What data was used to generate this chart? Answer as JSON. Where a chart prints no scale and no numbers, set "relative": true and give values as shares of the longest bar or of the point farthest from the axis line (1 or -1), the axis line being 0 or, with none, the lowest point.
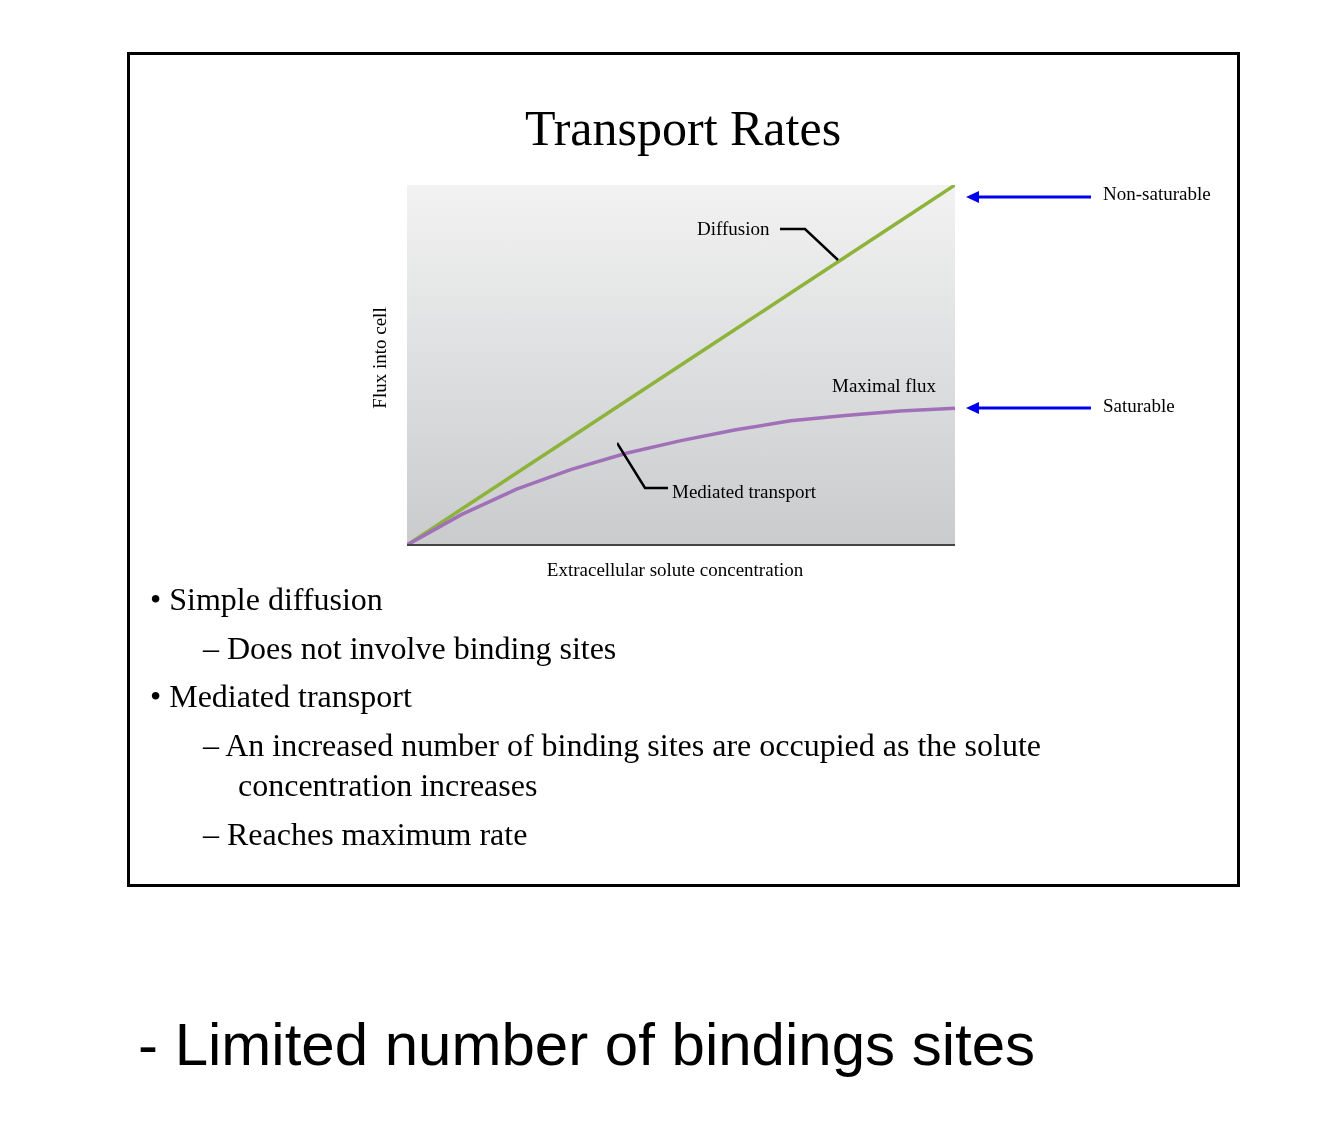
{
  "chart_data": {
    "type": "line",
    "title": "Transport Rates",
    "xlabel": "Extracellular solute concentration",
    "ylabel": "Flux into cell",
    "relative": true,
    "categories": [
      null,
      null,
      null,
      null,
      null,
      null,
      null,
      null,
      null,
      null,
      null
    ],
    "series": [
      {
        "name": "Diffusion",
        "color": "#8db33a",
        "values": [
          0,
          0.1,
          0.2,
          0.3,
          0.4,
          0.5,
          0.6,
          0.7,
          0.8,
          0.9,
          1
        ]
      },
      {
        "name": "Mediated transport",
        "color": "#a070b8",
        "values": [
          0,
          0.085,
          0.155,
          0.21,
          0.255,
          0.29,
          0.32,
          0.345,
          0.36,
          0.372,
          0.38
        ]
      }
    ],
    "annotations": [
      "Maximal flux",
      "Non-saturable",
      "Saturable",
      "• Simple diffusion",
      "– Does not involve binding sites",
      "• Mediated transport",
      "– An increased number of binding sites are occupied as the solute concentration increases",
      "– Reaches maximum rate",
      "-  Limited number of bindings sites"
    ]
  }
}
